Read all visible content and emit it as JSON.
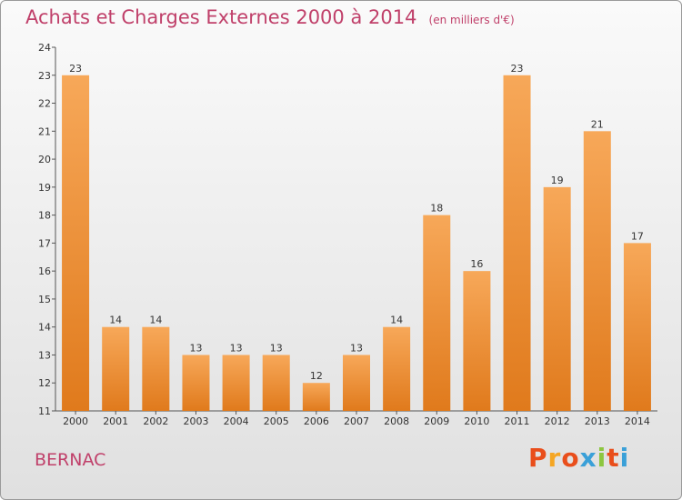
{
  "title": "Achats et Charges Externes 2000 à 2014",
  "subtitle": "(en milliers d'€)",
  "commune": "BERNAC",
  "logo": {
    "text": "Proxiti",
    "colors": [
      "#e94e1b",
      "#f5a623",
      "#e94e1b",
      "#3aa0d8",
      "#8cc63f",
      "#e94e1b",
      "#3aa0d8"
    ]
  },
  "colors": {
    "bar_light": "#f7a859",
    "bar_dark": "#e07a1c",
    "title": "#c0406a"
  },
  "chart_data": {
    "type": "bar",
    "title": "Achats et Charges Externes 2000 à 2014",
    "subtitle": "(en milliers d'€)",
    "categories": [
      "2000",
      "2001",
      "2002",
      "2003",
      "2004",
      "2005",
      "2006",
      "2007",
      "2008",
      "2009",
      "2010",
      "2011",
      "2012",
      "2013",
      "2014"
    ],
    "values": [
      23,
      14,
      14,
      13,
      13,
      13,
      12,
      13,
      14,
      18,
      16,
      23,
      19,
      21,
      17
    ],
    "y_ticks": [
      11,
      12,
      13,
      14,
      15,
      16,
      17,
      18,
      19,
      20,
      21,
      22,
      23,
      24
    ],
    "ylim": [
      11,
      24
    ],
    "grid": false,
    "legend": "none"
  }
}
